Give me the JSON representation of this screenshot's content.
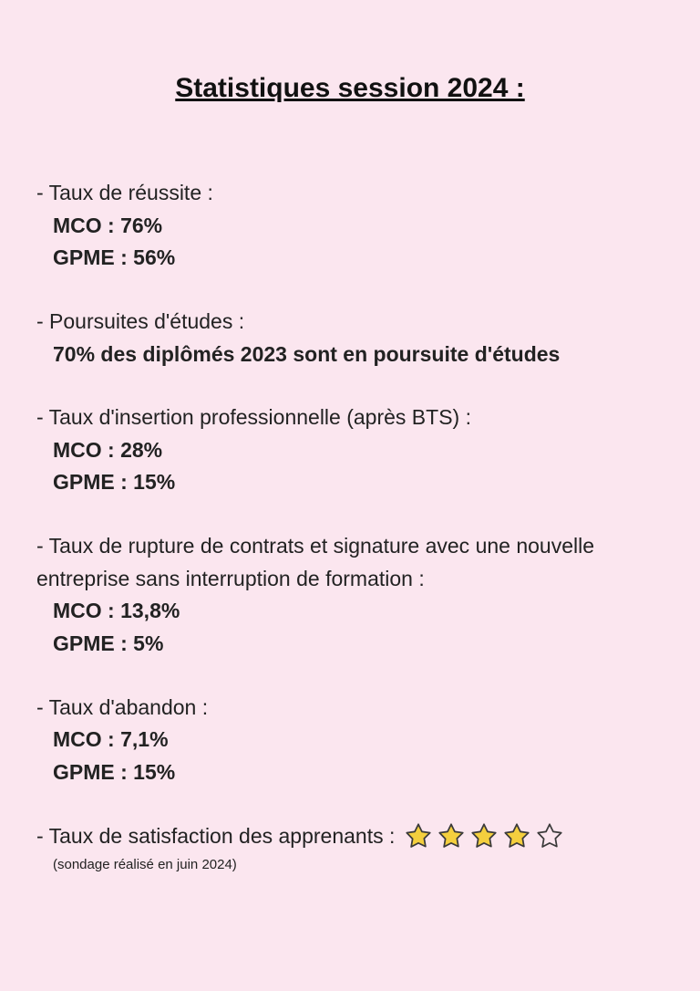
{
  "title": "Statistiques session 2024 :",
  "colors": {
    "background": "#fbe6ef",
    "text": "#1a1a1a",
    "star_fill": "#f4cf3e",
    "star_stroke": "#3a3a3a",
    "star_empty_fill": "#fbe6ef"
  },
  "typography": {
    "title_fontsize": 30,
    "body_fontsize": 23,
    "note_fontsize": 15,
    "font_family": "Segoe UI / Helvetica Neue / Arial"
  },
  "sections": {
    "reussite": {
      "label": "- Taux de réussite :",
      "mco": "MCO : 76%",
      "gpme": "GPME : 56%"
    },
    "poursuites": {
      "label": "- Poursuites d'études :",
      "value": "70% des diplômés 2023 sont en poursuite d'études"
    },
    "insertion": {
      "label": "- Taux d'insertion professionnelle (après BTS) :",
      "mco": "MCO : 28%",
      "gpme": "GPME : 15%"
    },
    "rupture": {
      "label": "- Taux de rupture de contrats et signature avec une nouvelle entreprise sans interruption de formation :",
      "mco": "MCO : 13,8%",
      "gpme": "GPME : 5%"
    },
    "abandon": {
      "label": "- Taux d'abandon :",
      "mco": "MCO : 7,1%",
      "gpme": "GPME : 15%"
    },
    "satisfaction": {
      "label": "- Taux de satisfaction des apprenants :",
      "rating": 4,
      "max": 5,
      "note": "(sondage réalisé en juin 2024)"
    }
  }
}
